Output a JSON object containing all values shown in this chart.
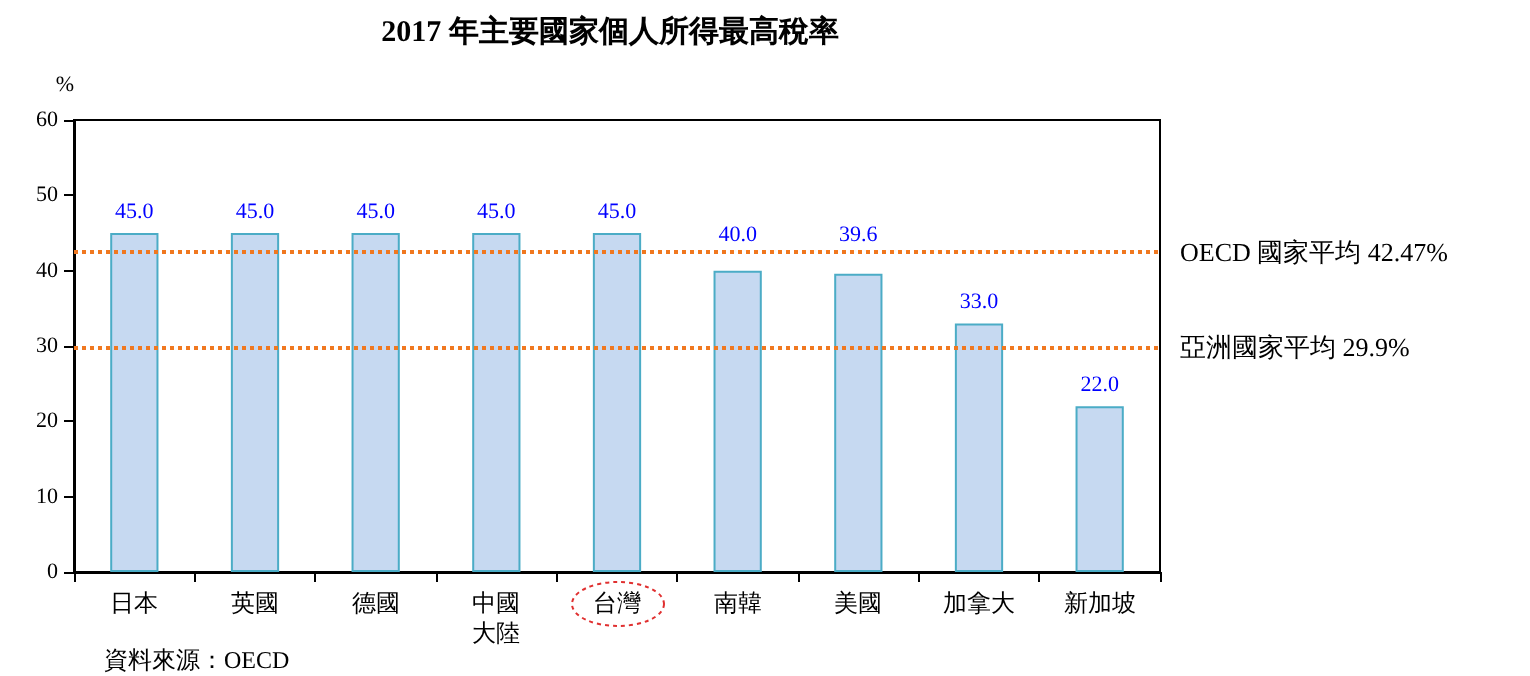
{
  "chart_data": {
    "type": "bar",
    "title": "2017 年主要國家個人所得最高稅率",
    "ylabel": "%",
    "categories": [
      "日本",
      "英國",
      "德國",
      "中國大陸",
      "台灣",
      "南韓",
      "美國",
      "加拿大",
      "新加坡"
    ],
    "values": [
      45.0,
      45.0,
      45.0,
      45.0,
      45.0,
      40.0,
      39.6,
      33.0,
      22.0
    ],
    "value_labels": [
      "45.0",
      "45.0",
      "45.0",
      "45.0",
      "45.0",
      "40.0",
      "39.6",
      "33.0",
      "22.0"
    ],
    "color": "#c6d9f1",
    "ylim": [
      0,
      60
    ],
    "yticks": [
      0,
      10,
      20,
      30,
      40,
      50,
      60
    ],
    "grid": false,
    "ref_lines": [
      {
        "axis": "y",
        "value": 42.47,
        "label": "OECD 國家平均 42.47%",
        "color": "#f07820",
        "line_style": "dotted"
      },
      {
        "axis": "y",
        "value": 29.9,
        "label": "亞洲國家平均 29.9%",
        "color": "#f07820",
        "line_style": "dotted"
      }
    ],
    "annotations": [
      "資料來源：OECD"
    ]
  }
}
